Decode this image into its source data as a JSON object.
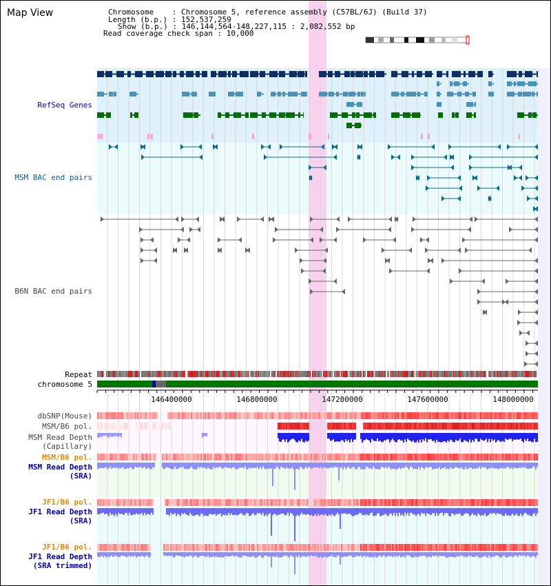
{
  "header": {
    "view_title": "Map View",
    "chromosome_line": "Chromosome    : Chromosome 5, reference assembly (C57BL/6J) (Build 37)",
    "length_line": "Length (b.p.) : 152,537,259",
    "show_line": "Show (b.p.) : 146,144,564-148,227,115 : 2,082,552 bp",
    "coverage_line": "Read coverage check span : 10,000"
  },
  "tracks": {
    "refseq": "RefSeq Genes",
    "msm_bac": "MSM BAC end pairs",
    "b6n_bac": "B6N BAC end pairs",
    "repeat": "Repeat",
    "chromosome": "chromosome 5",
    "dbsnp": "dbSNP(Mouse)",
    "msm_pol": "MSM/B6 pol.",
    "msm_depth_cap_1": "MSM Read Depth",
    "msm_depth_cap_2": "(Capillary)",
    "msm_pol_sra": "MSM/B6 pol.",
    "msm_depth_sra_1": "MSM Read Depth",
    "msm_depth_sra_2": "(SRA)",
    "jf1_pol": "JF1/B6 pol.",
    "jf1_depth_1": "JF1 Read Depth",
    "jf1_depth_2": "(SRA)",
    "jf1_pol_trim": "JF1/B6 pol.",
    "jf1_trim_1": "JF1 Read Depth",
    "jf1_trim_2": "(SRA trimmed)"
  },
  "axis": {
    "ticks": [
      "146400000",
      "146800000",
      "147200000",
      "147600000",
      "148000000"
    ]
  },
  "colors": {
    "refseq_bg": "#dff1fa",
    "bac_bg": "#ecfcfc",
    "highlight": "#f9d2ef",
    "gene_dark": "#0c2f63",
    "gene_mid": "#4a92b8",
    "gene_green": "#066d06",
    "label_blue": "#0000aa",
    "label_orange": "#e08a00",
    "label_teal": "#0a5e8a",
    "label_gray": "#444444"
  }
}
